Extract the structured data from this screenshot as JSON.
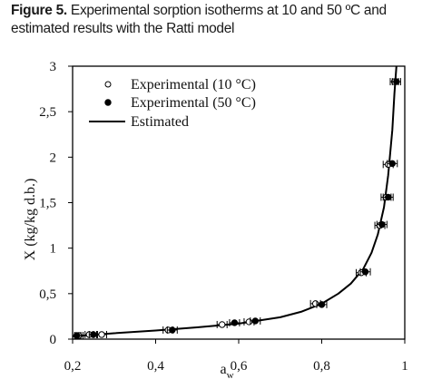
{
  "caption": {
    "label": "Figure 5.",
    "text": " Experimental sorption isotherms at 10 and 50 ºC and estimated results with the Ratti model"
  },
  "chart_data": {
    "type": "scatter",
    "xlabel": "a",
    "xlabel_sub": "w",
    "ylabel": "X (kg/kg d.b.)",
    "xlim": [
      0.2,
      1.0
    ],
    "ylim": [
      0,
      3
    ],
    "x_ticks": [
      0.2,
      0.4,
      0.6,
      0.8,
      1.0
    ],
    "x_tick_labels": [
      "0,2",
      "0,4",
      "0,6",
      "0,8",
      "1"
    ],
    "y_ticks": [
      0,
      0.5,
      1,
      1.5,
      2,
      2.5,
      3
    ],
    "y_tick_labels": [
      "0",
      "0,5",
      "1",
      "1,5",
      "2",
      "2,5",
      "3"
    ],
    "legend": {
      "position": "top-left",
      "entries": [
        "Experimental (10 °C)",
        "Experimental (50 °C)",
        "Estimated"
      ]
    },
    "series": [
      {
        "name": "Experimental (10 °C)",
        "marker": "open-circle",
        "points": [
          {
            "x": 0.215,
            "y": 0.04,
            "xerr": 0.01
          },
          {
            "x": 0.24,
            "y": 0.05,
            "xerr": 0.01
          },
          {
            "x": 0.27,
            "y": 0.05,
            "xerr": 0.012
          },
          {
            "x": 0.43,
            "y": 0.1,
            "xerr": 0.012
          },
          {
            "x": 0.56,
            "y": 0.16,
            "xerr": 0.012
          },
          {
            "x": 0.625,
            "y": 0.19,
            "xerr": 0.012
          },
          {
            "x": 0.785,
            "y": 0.39,
            "xerr": 0.012
          },
          {
            "x": 0.895,
            "y": 0.73,
            "xerr": 0.012
          },
          {
            "x": 0.94,
            "y": 1.25,
            "xerr": 0.012
          },
          {
            "x": 0.955,
            "y": 1.56,
            "xerr": 0.012
          },
          {
            "x": 0.96,
            "y": 1.92,
            "xerr": 0.012
          },
          {
            "x": 0.975,
            "y": 2.83,
            "xerr": 0.01
          }
        ]
      },
      {
        "name": "Experimental (50 °C)",
        "marker": "filled-circle",
        "points": [
          {
            "x": 0.21,
            "y": 0.04,
            "xerr": 0.01
          },
          {
            "x": 0.25,
            "y": 0.05,
            "xerr": 0.01
          },
          {
            "x": 0.44,
            "y": 0.1,
            "xerr": 0.012
          },
          {
            "x": 0.59,
            "y": 0.18,
            "xerr": 0.012
          },
          {
            "x": 0.64,
            "y": 0.2,
            "xerr": 0.012
          },
          {
            "x": 0.8,
            "y": 0.38,
            "xerr": 0.012
          },
          {
            "x": 0.905,
            "y": 0.74,
            "xerr": 0.012
          },
          {
            "x": 0.945,
            "y": 1.26,
            "xerr": 0.012
          },
          {
            "x": 0.96,
            "y": 1.56,
            "xerr": 0.012
          },
          {
            "x": 0.97,
            "y": 1.93,
            "xerr": 0.012
          },
          {
            "x": 0.98,
            "y": 2.83,
            "xerr": 0.01
          }
        ]
      },
      {
        "name": "Estimated",
        "marker": "line",
        "x": [
          0.2,
          0.3,
          0.4,
          0.5,
          0.6,
          0.7,
          0.75,
          0.8,
          0.84,
          0.87,
          0.9,
          0.92,
          0.935,
          0.95,
          0.96,
          0.97,
          0.975,
          0.98
        ],
        "y": [
          0.03,
          0.065,
          0.095,
          0.13,
          0.17,
          0.24,
          0.3,
          0.39,
          0.5,
          0.61,
          0.77,
          0.95,
          1.15,
          1.45,
          1.8,
          2.3,
          2.7,
          3.0
        ]
      }
    ]
  }
}
